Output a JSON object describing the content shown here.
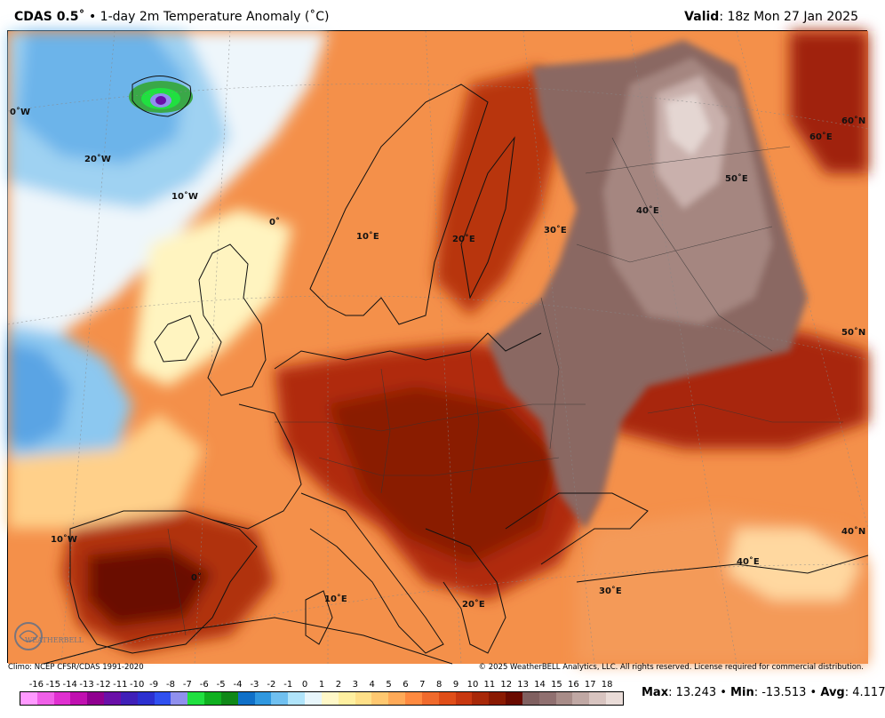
{
  "header": {
    "model": "CDAS 0.5˚",
    "separator": "•",
    "product": "1-day 2m Temperature Anomaly (˚C)",
    "valid_label": "Valid",
    "valid_time": ": 18z Mon 27 Jan 2025"
  },
  "map": {
    "lon_labels": [
      "0˚W",
      "20˚W",
      "10˚W",
      "0˚",
      "10˚E",
      "20˚E",
      "30˚E",
      "40˚E",
      "50˚E",
      "60˚E",
      "10˚W",
      "0˚",
      "10˚E",
      "20˚E",
      "30˚E",
      "40˚E"
    ],
    "lat_labels": [
      "60˚N",
      "50˚N",
      "40˚N"
    ],
    "logo_text": "WEATHERBELL"
  },
  "footer": {
    "climo": "Climo: NCEP CFSR/CDAS 1991-2020",
    "copyright": "© 2025 WeatherBELL Analytics, LLC. All rights reserved. License required for commercial distribution."
  },
  "legend": {
    "ticks": [
      "-16",
      "-15",
      "-14",
      "-13",
      "-12",
      "-11",
      "-10",
      "-9",
      "-8",
      "-7",
      "-6",
      "-5",
      "-4",
      "-3",
      "-2",
      "-1",
      "0",
      "1",
      "2",
      "3",
      "4",
      "5",
      "6",
      "7",
      "8",
      "9",
      "10",
      "11",
      "12",
      "13",
      "14",
      "15",
      "16",
      "17",
      "18"
    ],
    "colors": [
      "#ff99ff",
      "#f060e8",
      "#e030d0",
      "#c010b0",
      "#900090",
      "#6a10a8",
      "#4020b8",
      "#2c30d0",
      "#3050f0",
      "#9090ee",
      "#20e040",
      "#10b020",
      "#108818",
      "#1070c8",
      "#3098e0",
      "#70c0f0",
      "#b0e4fa",
      "#e8f6fb",
      "#fff8c8",
      "#fff0a0",
      "#ffe088",
      "#ffc870",
      "#ffaa58",
      "#ff8a40",
      "#f06a2c",
      "#e04e18",
      "#c83810",
      "#a82808",
      "#8a1a02",
      "#6a0a00",
      "#806060",
      "#907070",
      "#a88c88",
      "#c0a8a4",
      "#d8c4c0",
      "#eadcd8"
    ]
  },
  "stats": {
    "max_label": "Max",
    "max_value": ": 13.243",
    "sep1": " • ",
    "min_label": "Min",
    "min_value": ": -13.513",
    "sep2": " • ",
    "avg_label": "Avg",
    "avg_value": ": 4.117"
  }
}
